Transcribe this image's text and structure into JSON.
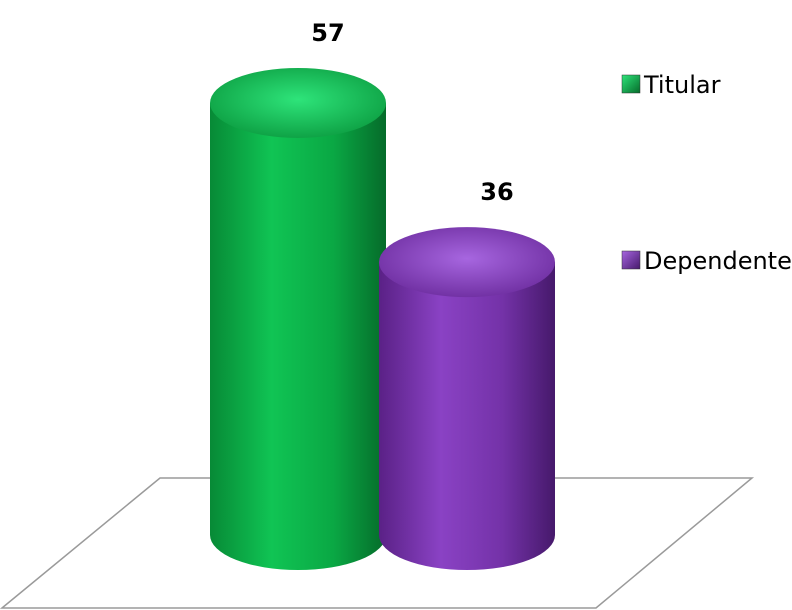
{
  "chart_data": {
    "type": "bar",
    "categories": [
      "Titular",
      "Dependente"
    ],
    "values": [
      57,
      36
    ],
    "colors": [
      "#0db14b",
      "#7b35b0"
    ],
    "ylim": [
      0,
      60
    ],
    "grid": false,
    "legend_position": "right",
    "style": "3d-cylinder"
  }
}
